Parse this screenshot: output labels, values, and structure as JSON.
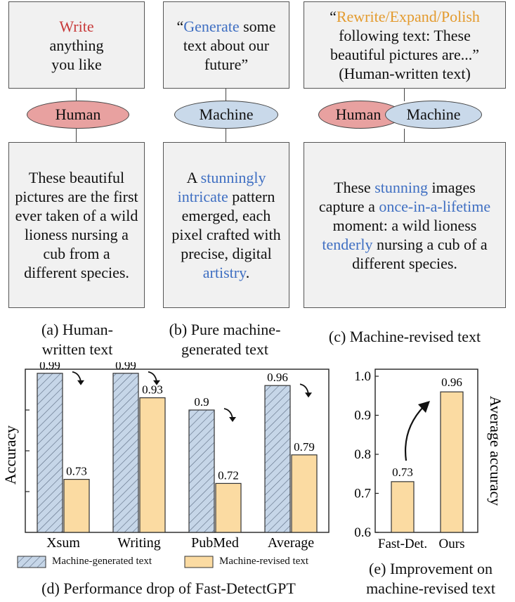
{
  "panel_a": {
    "prompt_colored": "Write",
    "prompt_rest": "anything you like",
    "label": "Human",
    "text": "These beautiful pictures are the first ever taken of a wild lioness nursing a cub from a different species.",
    "caption": "(a) Human-written text"
  },
  "panel_b": {
    "prompt_open": "“",
    "prompt_colored": "Generate",
    "prompt_rest": "some text about our future”",
    "label": "Machine",
    "text_parts": [
      "A ",
      "stunningly intricate",
      " pattern emerged, each pixel crafted with precise, digital ",
      "artistry",
      "."
    ],
    "caption": "(b) Pure machine-generated text"
  },
  "panel_c": {
    "prompt_open": "“",
    "prompt_colored": "Rewrite/Expand/Polish",
    "prompt_rest": "following text: These beautiful pictures are...”",
    "prompt_note": "(Human-written text)",
    "label_left": "Human",
    "label_right": "Machine",
    "text_parts": [
      "These ",
      "stunning",
      " images capture a ",
      "once-in-a-lifetime",
      " moment: a wild lioness ",
      "tenderly",
      " nursing a cub of a different species."
    ],
    "caption": "(c) Machine-revised text"
  },
  "colors": {
    "red": "#c83a3a",
    "blue": "#3f6fc2",
    "orange": "#e39a2d",
    "bar_blue": "#c6d6e8",
    "bar_yellow": "#fbdba2"
  },
  "chart_data": [
    {
      "type": "bar",
      "title": "(d) Performance drop of Fast-DetectGPT",
      "ylabel": "Accuracy",
      "ylim": [
        0.6,
        1.0
      ],
      "categories": [
        "Xsum",
        "Writing",
        "PubMed",
        "Average"
      ],
      "series": [
        {
          "name": "Machine-generated text",
          "values": [
            0.99,
            0.99,
            0.9,
            0.96
          ],
          "labels": [
            "0.99",
            "0.99",
            "0.9",
            "0.96"
          ]
        },
        {
          "name": "Machine-revised text",
          "values": [
            0.73,
            0.93,
            0.72,
            0.79
          ],
          "labels": [
            "0.73",
            "0.93",
            "0.72",
            "0.79"
          ]
        }
      ],
      "legend": "bottom"
    },
    {
      "type": "bar",
      "title": "(e) Improvement on machine-revised text",
      "ylabel": "Average accuracy",
      "ylim": [
        0.6,
        1.0
      ],
      "yticks": [
        "0.6",
        "0.7",
        "0.8",
        "0.9",
        "1.0"
      ],
      "categories": [
        "Fast-Det.",
        "Ours"
      ],
      "values": [
        0.73,
        0.96
      ],
      "labels": [
        "0.73",
        "0.96"
      ]
    }
  ]
}
